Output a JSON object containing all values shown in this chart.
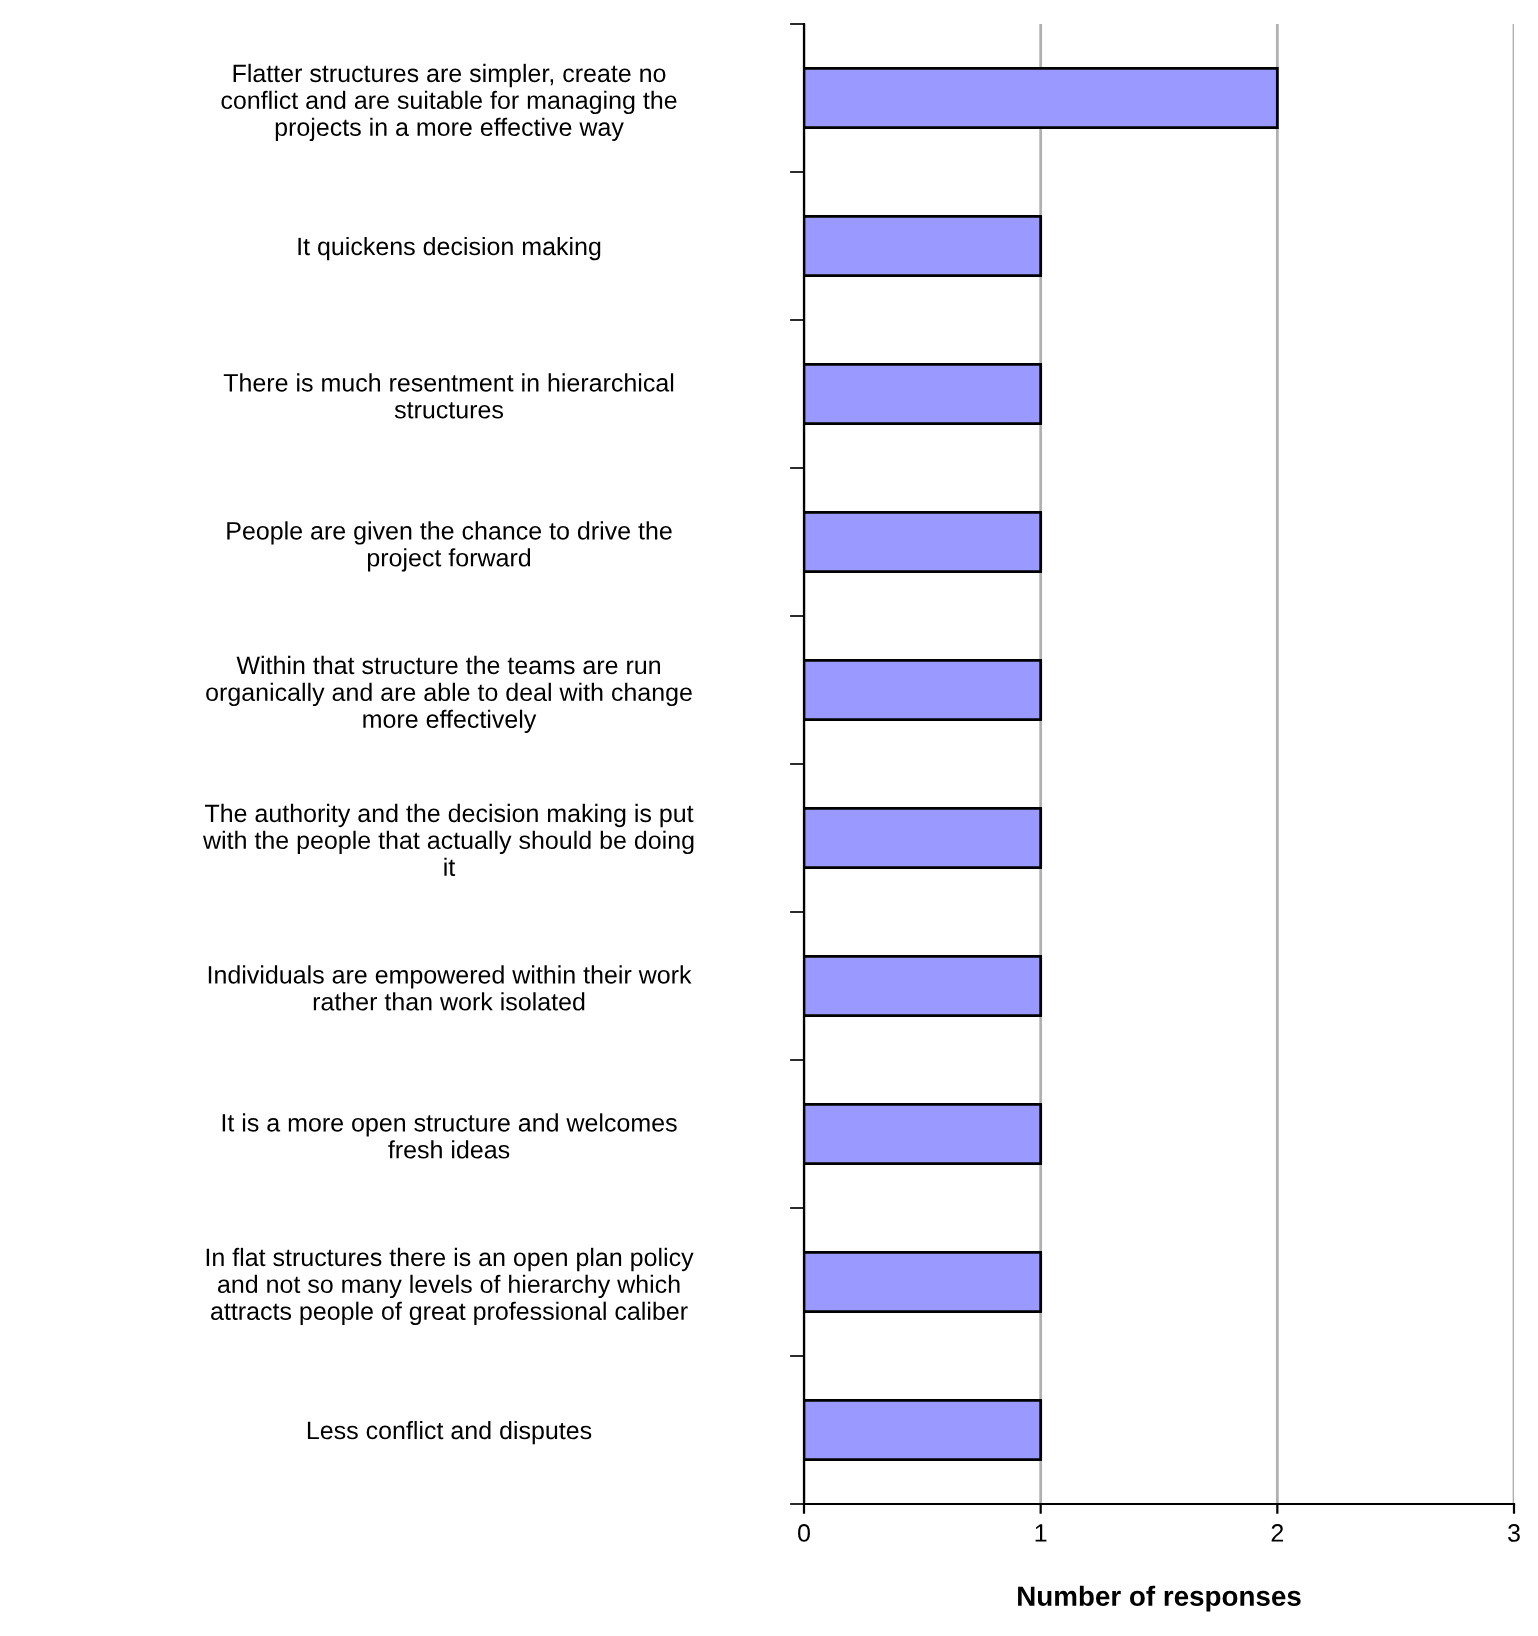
{
  "chart_data": {
    "type": "bar",
    "orientation": "horizontal",
    "xlabel": "Number of responses",
    "categories": [
      "Flatter structures are simpler, create no\nconflict and are suitable for managing the\nprojects in a more effective way",
      "It quickens decision making",
      "There is much resentment in hierarchical\nstructures",
      "People are given the chance to drive the\nproject forward",
      "Within that structure the teams are run\norganically and are able to deal with change\nmore effectively",
      "The authority and the decision making is put\nwith the people that actually should be doing\nit",
      "Individuals are empowered within their work\nrather than work isolated",
      "It is a more open structure and welcomes\nfresh ideas",
      "In flat structures there is an open plan policy\nand not so many levels of hierarchy which\nattracts people of great professional caliber",
      "Less conflict and disputes"
    ],
    "values": [
      2,
      1,
      1,
      1,
      1,
      1,
      1,
      1,
      1,
      1
    ],
    "color": "#9999ff",
    "xlim": [
      0,
      3
    ],
    "xticks": [
      0,
      1,
      2,
      3
    ],
    "grid": "x"
  }
}
